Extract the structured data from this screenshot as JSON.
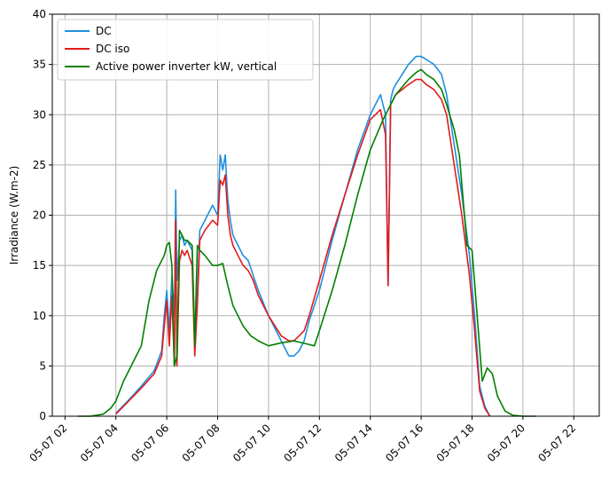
{
  "chart_data": {
    "type": "line",
    "xlabel": "",
    "ylabel": "Irradiance (W.m-2)",
    "x_tick_labels": [
      "05-07 02",
      "05-07 04",
      "05-07 06",
      "05-07 08",
      "05-07 10",
      "05-07 12",
      "05-07 14",
      "05-07 16",
      "05-07 18",
      "05-07 20",
      "05-07 22"
    ],
    "x_tick_hours": [
      2,
      4,
      6,
      8,
      10,
      12,
      14,
      16,
      18,
      20,
      22
    ],
    "xlim": [
      1.5,
      23.0
    ],
    "ylim": [
      0,
      40
    ],
    "y_ticks": [
      0,
      5,
      10,
      15,
      20,
      25,
      30,
      35,
      40
    ],
    "grid": true,
    "legend_position": "top-left",
    "series": [
      {
        "name": "DC",
        "color": "#1f8fe0",
        "x": [
          4.0,
          4.5,
          5.0,
          5.5,
          5.8,
          5.9,
          6.0,
          6.1,
          6.2,
          6.3,
          6.35,
          6.4,
          6.5,
          6.6,
          6.7,
          6.8,
          7.0,
          7.1,
          7.2,
          7.3,
          7.5,
          7.8,
          8.0,
          8.1,
          8.2,
          8.3,
          8.4,
          8.5,
          8.6,
          8.8,
          9.0,
          9.2,
          9.4,
          9.6,
          10.0,
          10.5,
          10.8,
          11.0,
          11.2,
          11.4,
          11.6,
          12.0,
          12.5,
          13.0,
          13.5,
          14.0,
          14.4,
          14.6,
          14.7,
          14.8,
          14.9,
          15.0,
          15.5,
          15.8,
          16.0,
          16.2,
          16.5,
          16.8,
          17.0,
          17.3,
          17.6,
          17.9,
          18.1,
          18.3,
          18.5,
          18.7
        ],
        "y": [
          0.3,
          1.6,
          3.0,
          4.5,
          6.5,
          10.0,
          12.5,
          8.5,
          14.0,
          10.0,
          22.5,
          13.5,
          17.5,
          18.0,
          17.0,
          17.5,
          16.5,
          7.5,
          12.0,
          18.5,
          19.5,
          21.0,
          20.0,
          26.0,
          24.5,
          26.0,
          21.5,
          19.5,
          18.0,
          17.0,
          16.0,
          15.5,
          14.0,
          12.5,
          10.0,
          7.5,
          6.0,
          6.0,
          6.5,
          7.5,
          9.5,
          12.5,
          17.5,
          22.0,
          26.5,
          30.0,
          32.0,
          30.0,
          13.0,
          31.5,
          32.5,
          33.0,
          35.0,
          35.8,
          35.8,
          35.5,
          35.0,
          34.0,
          32.0,
          27.0,
          22.0,
          16.0,
          10.0,
          3.0,
          1.0,
          0.0
        ]
      },
      {
        "name": "DC iso",
        "color": "#e31a1c",
        "x": [
          4.0,
          4.5,
          5.0,
          5.5,
          5.8,
          5.9,
          6.0,
          6.1,
          6.2,
          6.3,
          6.35,
          6.4,
          6.5,
          6.6,
          6.7,
          6.8,
          7.0,
          7.1,
          7.2,
          7.3,
          7.5,
          7.8,
          8.0,
          8.1,
          8.2,
          8.3,
          8.4,
          8.5,
          8.6,
          8.8,
          9.0,
          9.2,
          9.4,
          9.6,
          10.0,
          10.5,
          10.8,
          11.0,
          11.2,
          11.4,
          11.6,
          12.0,
          12.5,
          13.0,
          13.5,
          14.0,
          14.4,
          14.6,
          14.7,
          14.8,
          14.9,
          15.0,
          15.5,
          15.8,
          16.0,
          16.2,
          16.5,
          16.8,
          17.0,
          17.3,
          17.6,
          17.9,
          18.1,
          18.3,
          18.5,
          18.7
        ],
        "y": [
          0.2,
          1.5,
          2.8,
          4.2,
          6.0,
          9.0,
          11.5,
          7.0,
          12.0,
          5.0,
          19.5,
          5.0,
          15.5,
          16.5,
          16.0,
          16.5,
          15.0,
          6.0,
          11.0,
          17.5,
          18.5,
          19.5,
          19.0,
          23.5,
          23.0,
          24.0,
          20.0,
          18.0,
          17.0,
          16.0,
          15.0,
          14.5,
          13.5,
          12.0,
          10.0,
          8.0,
          7.5,
          7.5,
          8.0,
          8.5,
          10.0,
          13.5,
          18.0,
          22.0,
          26.0,
          29.5,
          30.5,
          28.0,
          13.0,
          31.0,
          31.5,
          32.0,
          33.0,
          33.5,
          33.5,
          33.0,
          32.5,
          31.5,
          30.0,
          25.0,
          20.0,
          14.0,
          8.5,
          2.5,
          0.8,
          0.0
        ]
      },
      {
        "name": "Active power inverter kW, vertical",
        "color": "#008000",
        "x": [
          2.5,
          3.0,
          3.5,
          3.8,
          4.0,
          4.3,
          4.6,
          5.0,
          5.3,
          5.6,
          5.9,
          6.0,
          6.1,
          6.2,
          6.3,
          6.4,
          6.5,
          6.6,
          6.7,
          6.8,
          7.0,
          7.1,
          7.2,
          7.3,
          7.5,
          7.8,
          8.0,
          8.2,
          8.4,
          8.6,
          8.8,
          9.0,
          9.3,
          9.6,
          10.0,
          10.5,
          11.0,
          11.5,
          11.8,
          12.0,
          12.5,
          13.0,
          13.5,
          14.0,
          14.5,
          15.0,
          15.5,
          15.8,
          16.0,
          16.2,
          16.5,
          16.8,
          17.0,
          17.3,
          17.5,
          17.8,
          18.0,
          18.2,
          18.4,
          18.6,
          18.8,
          19.0,
          19.3,
          19.6,
          20.0,
          20.5
        ],
        "y": [
          0.0,
          0.0,
          0.2,
          0.8,
          1.5,
          3.5,
          5.0,
          7.0,
          11.5,
          14.5,
          16.0,
          17.0,
          17.3,
          15.0,
          5.0,
          6.0,
          18.5,
          18.0,
          17.5,
          17.5,
          17.0,
          7.0,
          17.0,
          16.5,
          16.0,
          15.0,
          15.0,
          15.2,
          13.0,
          11.0,
          10.0,
          9.0,
          8.0,
          7.5,
          7.0,
          7.3,
          7.5,
          7.2,
          7.0,
          8.5,
          12.5,
          17.0,
          22.0,
          26.5,
          29.5,
          32.0,
          33.5,
          34.2,
          34.5,
          34.0,
          33.5,
          32.5,
          31.0,
          28.5,
          26.0,
          17.0,
          16.5,
          10.0,
          3.5,
          4.8,
          4.2,
          2.0,
          0.5,
          0.1,
          0.0,
          0.0
        ]
      }
    ]
  }
}
